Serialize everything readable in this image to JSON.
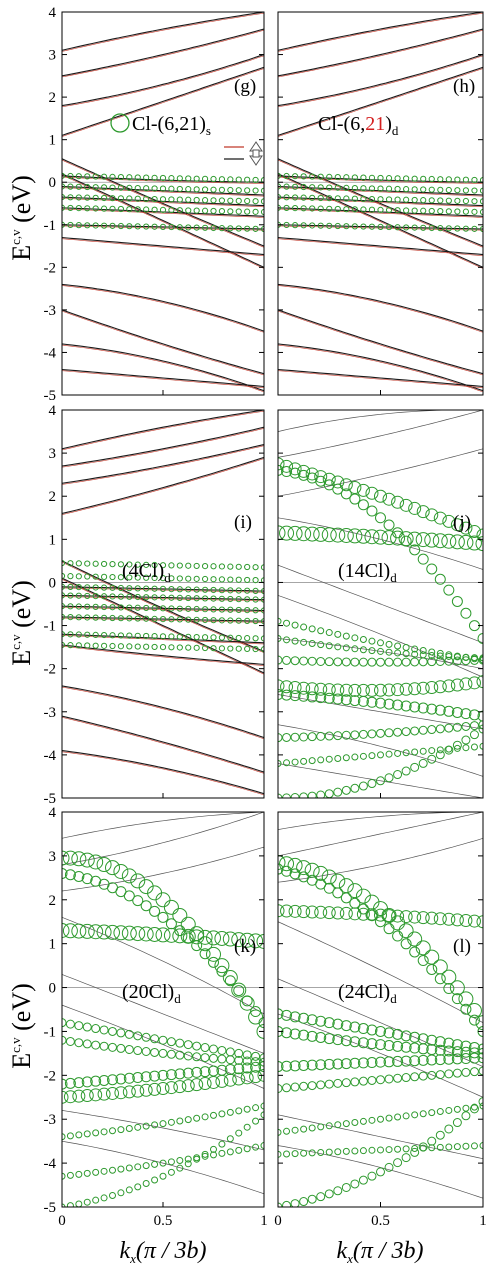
{
  "figure": {
    "y_axis_label": "E",
    "y_axis_superscript": "c,v",
    "y_axis_unit": "(eV)",
    "x_axis_label": "k",
    "x_axis_subscript": "x",
    "x_axis_unit": "(π / 3b)",
    "colors": {
      "band": "#1a1a1a",
      "spin_up": "#c0392b",
      "cl_marker": "#2e9a2e"
    }
  },
  "chart_data": [
    {
      "type": "line",
      "panel": "(g)",
      "annotation": "Cl-(6,21)",
      "annotation_sub": "s",
      "legend_marker": "circle",
      "spin_legend": [
        "up arrow",
        "down arrow"
      ],
      "x": [
        0,
        0.5,
        1
      ],
      "xlim": [
        0,
        1
      ],
      "ylim": [
        -5,
        4
      ],
      "yticks": [
        4,
        3,
        2,
        1,
        0,
        -1,
        -2,
        -3,
        -4,
        -5
      ],
      "series": [
        {
          "values": [
            3.1,
            3.6,
            4.0
          ]
        },
        {
          "values": [
            2.5,
            3.0,
            3.6
          ]
        },
        {
          "values": [
            1.8,
            2.3,
            3.0
          ]
        },
        {
          "values": [
            1.1,
            1.9,
            2.7
          ]
        },
        {
          "values": [
            0.55,
            -0.5,
            -1.5
          ]
        },
        {
          "values": [
            0.2,
            -0.9,
            -2.0
          ]
        },
        {
          "values": [
            0.15,
            0.05,
            0.0
          ]
        },
        {
          "values": [
            -0.1,
            -0.2,
            -0.3
          ]
        },
        {
          "values": [
            -0.35,
            -0.45,
            -0.55
          ]
        },
        {
          "values": [
            -0.6,
            -0.7,
            -0.8
          ]
        },
        {
          "values": [
            -1.0,
            -1.05,
            -1.1
          ]
        },
        {
          "values": [
            -1.3,
            -1.5,
            -1.7
          ]
        },
        {
          "values": [
            -2.4,
            -2.8,
            -3.5
          ]
        },
        {
          "values": [
            -3.0,
            -3.8,
            -4.5
          ]
        },
        {
          "values": [
            -3.8,
            -4.2,
            -4.9
          ]
        },
        {
          "values": [
            -4.4,
            -4.6,
            -4.8
          ]
        }
      ],
      "cl_bands": [
        0.15,
        -0.1,
        -0.35,
        -0.6,
        -1.0
      ]
    },
    {
      "type": "line",
      "panel": "(h)",
      "annotation_pre": "Cl-(6,",
      "annotation_red": "21",
      "annotation_post": ")",
      "annotation_sub": "d",
      "x": [
        0,
        0.5,
        1
      ],
      "xlim": [
        0,
        1
      ],
      "ylim": [
        -5,
        4
      ],
      "series": [
        {
          "values": [
            3.1,
            3.6,
            4.0
          ]
        },
        {
          "values": [
            2.5,
            3.0,
            3.6
          ]
        },
        {
          "values": [
            1.8,
            2.3,
            3.0
          ]
        },
        {
          "values": [
            1.1,
            1.9,
            2.7
          ]
        },
        {
          "values": [
            0.55,
            -0.5,
            -1.5
          ]
        },
        {
          "values": [
            0.2,
            -0.9,
            -2.0
          ]
        },
        {
          "values": [
            0.15,
            0.05,
            0.0
          ]
        },
        {
          "values": [
            -0.1,
            -0.2,
            -0.3
          ]
        },
        {
          "values": [
            -0.35,
            -0.45,
            -0.55
          ]
        },
        {
          "values": [
            -0.6,
            -0.7,
            -0.8
          ]
        },
        {
          "values": [
            -1.0,
            -1.05,
            -1.1
          ]
        },
        {
          "values": [
            -1.3,
            -1.5,
            -1.7
          ]
        },
        {
          "values": [
            -2.4,
            -2.8,
            -3.5
          ]
        },
        {
          "values": [
            -3.0,
            -3.8,
            -4.5
          ]
        },
        {
          "values": [
            -3.8,
            -4.2,
            -4.9
          ]
        },
        {
          "values": [
            -4.4,
            -4.6,
            -4.8
          ]
        }
      ],
      "cl_bands": [
        0.15,
        -0.1,
        -0.35,
        -0.6,
        -1.0
      ]
    },
    {
      "type": "line",
      "panel": "(i)",
      "annotation": "(4Cl)",
      "annotation_sub": "d",
      "x": [
        0,
        0.5,
        1
      ],
      "xlim": [
        0,
        1
      ],
      "ylim": [
        -5,
        4
      ],
      "yticks": [
        4,
        3,
        2,
        1,
        0,
        -1,
        -2,
        -3,
        -4,
        -5
      ],
      "series": [
        {
          "values": [
            3.1,
            3.6,
            4.0
          ]
        },
        {
          "values": [
            2.7,
            3.1,
            3.6
          ]
        },
        {
          "values": [
            2.3,
            2.7,
            3.2
          ]
        },
        {
          "values": [
            1.6,
            2.2,
            2.9
          ]
        },
        {
          "values": [
            0.5,
            -0.6,
            -1.6
          ]
        },
        {
          "values": [
            0.1,
            -1.0,
            -2.1
          ]
        },
        {
          "values": [
            -0.1,
            -0.15,
            -0.2
          ]
        },
        {
          "values": [
            -0.3,
            -0.35,
            -0.4
          ]
        },
        {
          "values": [
            -0.55,
            -0.6,
            -0.65
          ]
        },
        {
          "values": [
            -0.8,
            -0.85,
            -0.9
          ]
        },
        {
          "values": [
            -1.2,
            -1.3,
            -1.4
          ]
        },
        {
          "values": [
            -1.45,
            -1.7,
            -1.9
          ]
        },
        {
          "values": [
            -2.4,
            -2.9,
            -3.6
          ]
        },
        {
          "values": [
            -3.1,
            -3.7,
            -4.4
          ]
        },
        {
          "values": [
            -3.9,
            -4.3,
            -4.9
          ]
        }
      ],
      "cl_bands": [
        0.45,
        0.15,
        -0.1,
        -0.3,
        -0.55,
        -0.8,
        -1.2,
        -1.45
      ]
    },
    {
      "type": "line",
      "panel": "(j)",
      "annotation": "(14Cl)",
      "annotation_sub": "d",
      "x": [
        0,
        0.5,
        1
      ],
      "xlim": [
        0,
        1
      ],
      "ylim": [
        -5,
        4
      ],
      "series": [
        {
          "values": [
            3.5,
            3.9,
            4.0
          ]
        },
        {
          "values": [
            2.9,
            3.4,
            4.0
          ]
        },
        {
          "values": [
            2.0,
            2.5,
            3.1
          ]
        },
        {
          "values": [
            1.5,
            1.0,
            0.3
          ]
        },
        {
          "values": [
            0.4,
            -0.5,
            -1.4
          ]
        },
        {
          "values": [
            -0.3,
            -1.2,
            -2.2
          ]
        },
        {
          "values": [
            -1.3,
            -1.6,
            -2.0
          ]
        },
        {
          "values": [
            -2.6,
            -3.0,
            -3.4
          ]
        },
        {
          "values": [
            -3.3,
            -3.8,
            -4.5
          ]
        },
        {
          "values": [
            -4.2,
            -4.6,
            -5.0
          ]
        }
      ],
      "cl_bands": [
        {
          "values": [
            2.75,
            2.0,
            1.1
          ],
          "size": 6
        },
        {
          "values": [
            2.6,
            1.5,
            -1.3
          ],
          "size": 5
        },
        {
          "values": [
            1.15,
            1.05,
            0.9
          ],
          "size": 7
        },
        {
          "values": [
            -0.9,
            -1.4,
            -1.8
          ],
          "size": 3
        },
        {
          "values": [
            -1.3,
            -1.6,
            -1.75
          ],
          "size": 3
        },
        {
          "values": [
            -1.8,
            -1.85,
            -1.8
          ],
          "size": 4
        },
        {
          "values": [
            -2.4,
            -2.5,
            -2.3
          ],
          "size": 6
        },
        {
          "values": [
            -2.6,
            -2.8,
            -3.1
          ],
          "size": 5
        },
        {
          "values": [
            -3.6,
            -3.5,
            -3.3
          ],
          "size": 4
        },
        {
          "values": [
            -4.2,
            -4.0,
            -3.8
          ],
          "size": 3
        },
        {
          "values": [
            -5.0,
            -4.6,
            -3.4
          ],
          "size": 4
        }
      ]
    },
    {
      "type": "line",
      "panel": "(k)",
      "annotation": "(20Cl)",
      "annotation_sub": "d",
      "x": [
        0,
        0.5,
        1
      ],
      "xlim": [
        0,
        1
      ],
      "ylim": [
        -5,
        4
      ],
      "yticks": [
        4,
        3,
        2,
        1,
        0,
        -1,
        -2,
        -3,
        -4,
        -5
      ],
      "series": [
        {
          "values": [
            3.4,
            3.8,
            4.0
          ]
        },
        {
          "values": [
            2.8,
            3.3,
            4.0
          ]
        },
        {
          "values": [
            2.2,
            2.6,
            3.2
          ]
        },
        {
          "values": [
            1.6,
            0.6,
            -0.6
          ]
        },
        {
          "values": [
            0.3,
            -0.6,
            -1.5
          ]
        },
        {
          "values": [
            -0.4,
            -1.3,
            -2.3
          ]
        },
        {
          "values": [
            -2.8,
            -3.2,
            -3.7
          ]
        },
        {
          "values": [
            -3.5,
            -4.0,
            -4.7
          ]
        }
      ],
      "cl_bands": [
        {
          "values": [
            2.95,
            2.0,
            -1.0
          ],
          "size": 7
        },
        {
          "values": [
            2.6,
            1.6,
            -0.8
          ],
          "size": 5
        },
        {
          "values": [
            1.3,
            1.2,
            1.05
          ],
          "size": 7
        },
        {
          "values": [
            -0.8,
            -1.2,
            -1.6
          ],
          "size": 4
        },
        {
          "values": [
            -1.2,
            -1.5,
            -1.7
          ],
          "size": 4
        },
        {
          "values": [
            -2.2,
            -2.0,
            -1.8
          ],
          "size": 5
        },
        {
          "values": [
            -2.5,
            -2.3,
            -2.0
          ],
          "size": 6
        },
        {
          "values": [
            -3.4,
            -3.1,
            -2.7
          ],
          "size": 3
        },
        {
          "values": [
            -4.3,
            -4.0,
            -3.6
          ],
          "size": 3
        },
        {
          "values": [
            -5.0,
            -4.3,
            -2.9
          ],
          "size": 3
        }
      ]
    },
    {
      "type": "line",
      "panel": "(l)",
      "annotation": "(24Cl)",
      "annotation_sub": "d",
      "x": [
        0,
        0.5,
        1
      ],
      "xlim": [
        0,
        1
      ],
      "ylim": [
        -5,
        4
      ],
      "series": [
        {
          "values": [
            3.6,
            3.9,
            4.0
          ]
        },
        {
          "values": [
            3.0,
            3.5,
            4.0
          ]
        },
        {
          "values": [
            2.4,
            2.8,
            3.4
          ]
        },
        {
          "values": [
            1.5,
            0.4,
            -0.8
          ]
        },
        {
          "values": [
            0.2,
            -0.8,
            -1.8
          ]
        },
        {
          "values": [
            -0.6,
            -1.5,
            -2.5
          ]
        },
        {
          "values": [
            -2.9,
            -3.4,
            -3.9
          ]
        },
        {
          "values": [
            -3.6,
            -4.1,
            -4.8
          ]
        }
      ],
      "cl_bands": [
        {
          "values": [
            2.85,
            1.8,
            -0.8
          ],
          "size": 7
        },
        {
          "values": [
            2.7,
            1.5,
            -1.0
          ],
          "size": 5
        },
        {
          "values": [
            1.75,
            1.65,
            1.5
          ],
          "size": 6
        },
        {
          "values": [
            -0.6,
            -1.0,
            -1.4
          ],
          "size": 5
        },
        {
          "values": [
            -1.0,
            -1.3,
            -1.5
          ],
          "size": 5
        },
        {
          "values": [
            -1.8,
            -1.7,
            -1.6
          ],
          "size": 5
        },
        {
          "values": [
            -2.3,
            -2.1,
            -1.9
          ],
          "size": 4
        },
        {
          "values": [
            -3.3,
            -3.0,
            -2.7
          ],
          "size": 3
        },
        {
          "values": [
            -3.8,
            -3.7,
            -3.6
          ],
          "size": 3
        },
        {
          "values": [
            -5.0,
            -4.2,
            -2.6
          ],
          "size": 4
        }
      ]
    }
  ],
  "xticks": [
    "0",
    "0.5",
    "1"
  ]
}
